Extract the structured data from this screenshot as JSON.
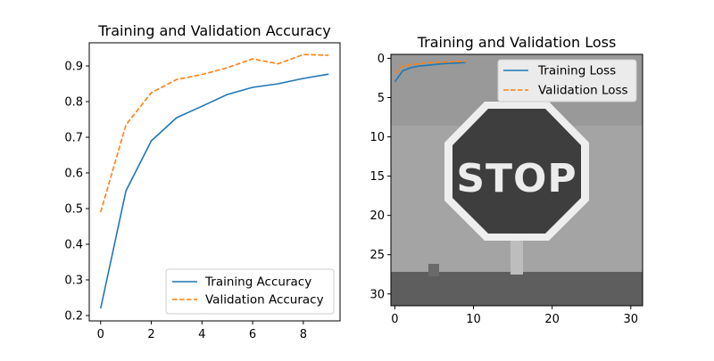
{
  "chart_data": [
    {
      "type": "line",
      "title": "Training and Validation Accuracy",
      "xlabel": "",
      "ylabel": "",
      "x": [
        0,
        1,
        2,
        3,
        4,
        5,
        6,
        7,
        8,
        9
      ],
      "xlim": [
        -0.45,
        9.45
      ],
      "ylim": [
        0.185,
        0.965
      ],
      "xticks": [
        0,
        2,
        4,
        6,
        8
      ],
      "xtick_labels": [
        "0",
        "2",
        "4",
        "6",
        "8"
      ],
      "yticks": [
        0.2,
        0.3,
        0.4,
        0.5,
        0.6,
        0.7,
        0.8,
        0.9
      ],
      "ytick_labels": [
        "0.2",
        "0.3",
        "0.4",
        "0.5",
        "0.6",
        "0.7",
        "0.8",
        "0.9"
      ],
      "grid": false,
      "legend_position": "lower-right",
      "series": [
        {
          "name": "Training Accuracy",
          "color": "#1f77b4",
          "style": "solid",
          "values": [
            0.22,
            0.55,
            0.69,
            0.755,
            0.787,
            0.82,
            0.84,
            0.85,
            0.865,
            0.877
          ]
        },
        {
          "name": "Validation Accuracy",
          "color": "#ff7f0e",
          "style": "dashed",
          "values": [
            0.49,
            0.735,
            0.825,
            0.862,
            0.876,
            0.895,
            0.92,
            0.906,
            0.932,
            0.93
          ]
        }
      ]
    },
    {
      "type": "heatmap",
      "title": "Training and Validation Loss",
      "background": "grayscale image of a STOP sign (32×32 pixels)",
      "image_text": "STOP",
      "xlabel": "",
      "ylabel": "",
      "xlim": [
        -0.5,
        31.5
      ],
      "ylim": [
        31.5,
        -0.5
      ],
      "xticks": [
        0,
        10,
        20,
        30
      ],
      "xtick_labels": [
        "0",
        "10",
        "20",
        "30"
      ],
      "yticks": [
        0,
        5,
        10,
        15,
        20,
        25,
        30
      ],
      "ytick_labels": [
        "0",
        "5",
        "10",
        "15",
        "20",
        "25",
        "30"
      ],
      "legend_position": "upper-right",
      "x": [
        0,
        1,
        2,
        3,
        4,
        5,
        6,
        7,
        8,
        9
      ],
      "series": [
        {
          "name": "Training Loss",
          "color": "#1f77b4",
          "style": "solid",
          "values": [
            3.0,
            1.6,
            1.2,
            1.0,
            0.9,
            0.8,
            0.7,
            0.65,
            0.6,
            0.55
          ]
        },
        {
          "name": "Validation Loss",
          "color": "#ff7f0e",
          "style": "dashed",
          "values": [
            1.9,
            1.0,
            0.8,
            0.7,
            0.6,
            0.55,
            0.5,
            0.45,
            0.42,
            0.4
          ]
        }
      ]
    }
  ]
}
